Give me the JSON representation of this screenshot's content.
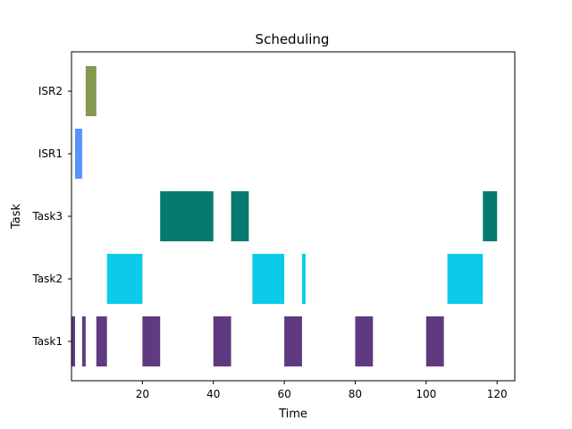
{
  "chart_data": {
    "type": "gantt",
    "title": "Scheduling",
    "xlabel": "Time",
    "ylabel": "Task",
    "xlim": [
      0,
      125
    ],
    "xticks": [
      20,
      40,
      60,
      80,
      100,
      120
    ],
    "grid": false,
    "tasks": [
      {
        "name": "Task1",
        "color": "#5f3a80",
        "intervals": [
          [
            0,
            1
          ],
          [
            3,
            4
          ],
          [
            7,
            10
          ],
          [
            20,
            25
          ],
          [
            40,
            45
          ],
          [
            60,
            65
          ],
          [
            80,
            85
          ],
          [
            100,
            105
          ]
        ]
      },
      {
        "name": "Task2",
        "color": "#0bcbe8",
        "intervals": [
          [
            10,
            20
          ],
          [
            51,
            60
          ],
          [
            65,
            66
          ],
          [
            106,
            116
          ]
        ]
      },
      {
        "name": "Task3",
        "color": "#067a70",
        "intervals": [
          [
            25,
            40
          ],
          [
            45,
            50
          ],
          [
            116,
            120
          ]
        ]
      },
      {
        "name": "ISR1",
        "color": "#5793ff",
        "intervals": [
          [
            1,
            3
          ]
        ]
      },
      {
        "name": "ISR2",
        "color": "#84984f",
        "intervals": [
          [
            4,
            7
          ]
        ]
      }
    ]
  }
}
